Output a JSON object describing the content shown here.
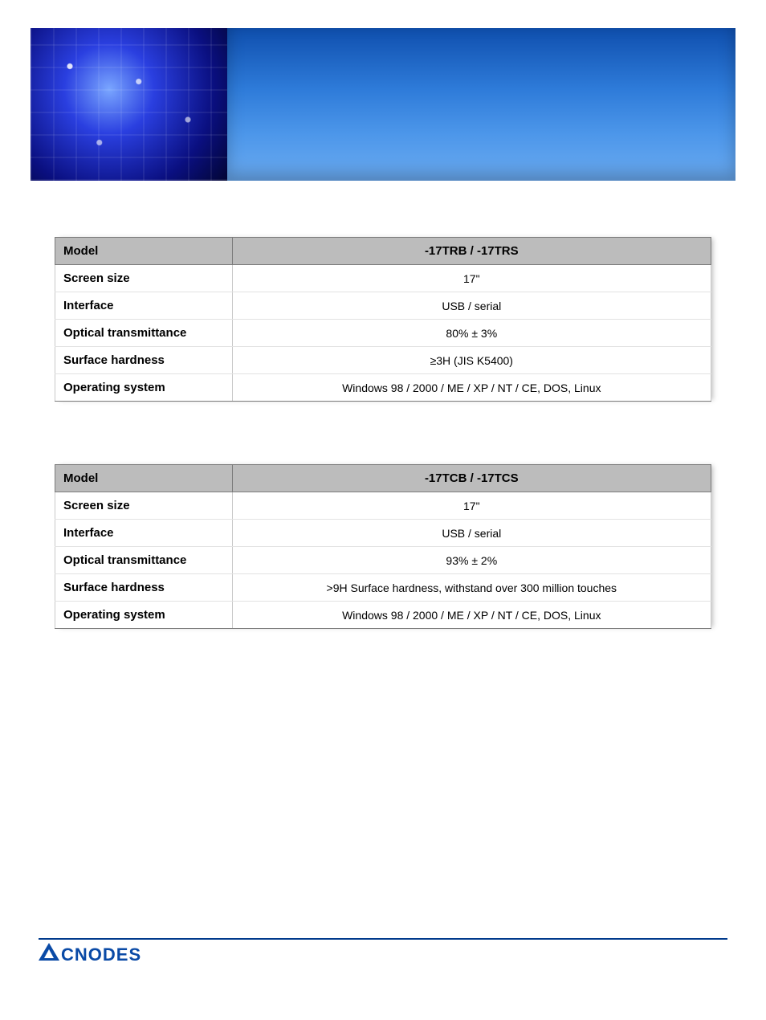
{
  "banner": {
    "bg_gradient_top": "#175fbf",
    "bg_gradient_bottom": "#6aaaf0",
    "image_theme": "circuit-board"
  },
  "tables": [
    {
      "header": {
        "label": "Model",
        "value": "-17TRB / -17TRS"
      },
      "rows": [
        {
          "label": "Screen size",
          "value": "17\""
        },
        {
          "label": "Interface",
          "value": "USB / serial"
        },
        {
          "label": "Optical transmittance",
          "value": "80% ± 3%"
        },
        {
          "label": "Surface hardness",
          "value": "≥3H (JIS K5400)"
        },
        {
          "label": "Operating system",
          "value": "Windows 98 / 2000 / ME / XP / NT / CE, DOS, Linux"
        }
      ],
      "header_bg": "#bcbcbc",
      "border_color": "#7b7b7b",
      "row_bg": "#ffffff"
    },
    {
      "header": {
        "label": "Model",
        "value": "-17TCB / -17TCS"
      },
      "rows": [
        {
          "label": "Screen size",
          "value": "17\""
        },
        {
          "label": "Interface",
          "value": "USB / serial"
        },
        {
          "label": "Optical transmittance",
          "value": "93% ± 2%"
        },
        {
          "label": "Surface hardness",
          "value": ">9H Surface hardness, withstand over 300 million touches"
        },
        {
          "label": "Operating system",
          "value": "Windows 98 / 2000 / ME / XP / NT / CE, DOS, Linux"
        }
      ],
      "header_bg": "#bcbcbc",
      "border_color": "#7b7b7b",
      "row_bg": "#ffffff"
    }
  ],
  "footer": {
    "rule_color": "#003a8c",
    "logo_text": "CNODES",
    "logo_color": "#0a4aa6"
  }
}
